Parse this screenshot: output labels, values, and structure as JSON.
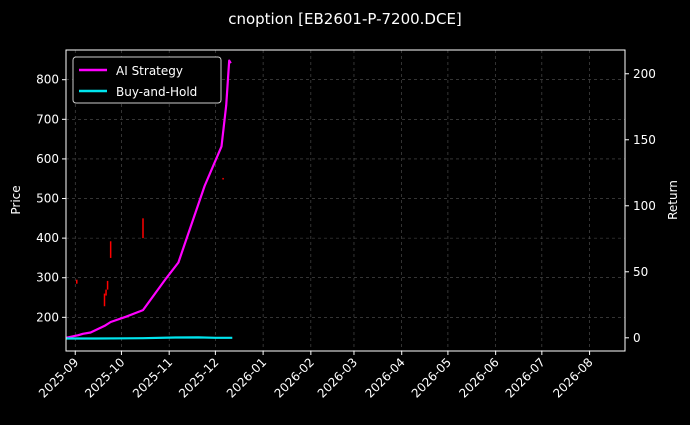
{
  "chart_data": {
    "type": "line",
    "title": "cnoption [EB2601-P-7200.DCE]",
    "ylabel_left": "Price",
    "ylabel_right": "Return",
    "x_type": "date",
    "xlim": [
      "2025-08-26",
      "2026-08-24"
    ],
    "x_ticks": [
      "2025-09",
      "2025-10",
      "2025-11",
      "2025-12",
      "2026-01",
      "2026-02",
      "2026-03",
      "2026-04",
      "2026-05",
      "2026-06",
      "2026-07",
      "2026-08"
    ],
    "left_axis": {
      "ylim": [
        115,
        875
      ],
      "ticks": [
        200,
        300,
        400,
        500,
        600,
        700,
        800
      ]
    },
    "right_axis": {
      "ylim": [
        -10,
        218
      ],
      "ticks": [
        0,
        50,
        100,
        150,
        200
      ]
    },
    "grid": true,
    "legend": {
      "position": "top-left",
      "entries": [
        "AI Strategy",
        "Buy-and-Hold"
      ]
    },
    "colors": {
      "background": "#000000",
      "text": "#ffffff",
      "grid": "#555555",
      "ai_strategy": "#ff00ff",
      "buy_and_hold": "#00e5ee",
      "price_bars": "#ff0000"
    },
    "series": [
      {
        "name": "AI Strategy",
        "axis": "right",
        "x": [
          "2025-08-26",
          "2025-09-03",
          "2025-09-06",
          "2025-09-11",
          "2025-09-20",
          "2025-09-24",
          "2025-10-04",
          "2025-10-15",
          "2025-10-30",
          "2025-11-07",
          "2025-11-24",
          "2025-12-05",
          "2025-12-08",
          "2025-12-10",
          "2025-12-11"
        ],
        "y": [
          0,
          2,
          3,
          4,
          9,
          12,
          16,
          21,
          45,
          57,
          115,
          145,
          176,
          210,
          208
        ]
      },
      {
        "name": "Buy-and-Hold",
        "axis": "right",
        "x": [
          "2025-08-26",
          "2025-09-15",
          "2025-10-15",
          "2025-11-05",
          "2025-11-20",
          "2025-12-01",
          "2025-12-12"
        ],
        "y": [
          -0.5,
          -0.5,
          -0.3,
          0.2,
          0.3,
          0,
          0
        ]
      }
    ],
    "price_marks": [
      {
        "x": "2025-09-02",
        "low": 285,
        "high": 295
      },
      {
        "x": "2025-09-20",
        "low": 228,
        "high": 260
      },
      {
        "x": "2025-09-21",
        "low": 255,
        "high": 270
      },
      {
        "x": "2025-09-22",
        "low": 270,
        "high": 292
      },
      {
        "x": "2025-09-24",
        "low": 350,
        "high": 392
      },
      {
        "x": "2025-10-15",
        "low": 400,
        "high": 450
      },
      {
        "x": "2025-12-06",
        "low": 548,
        "high": 552
      }
    ]
  }
}
